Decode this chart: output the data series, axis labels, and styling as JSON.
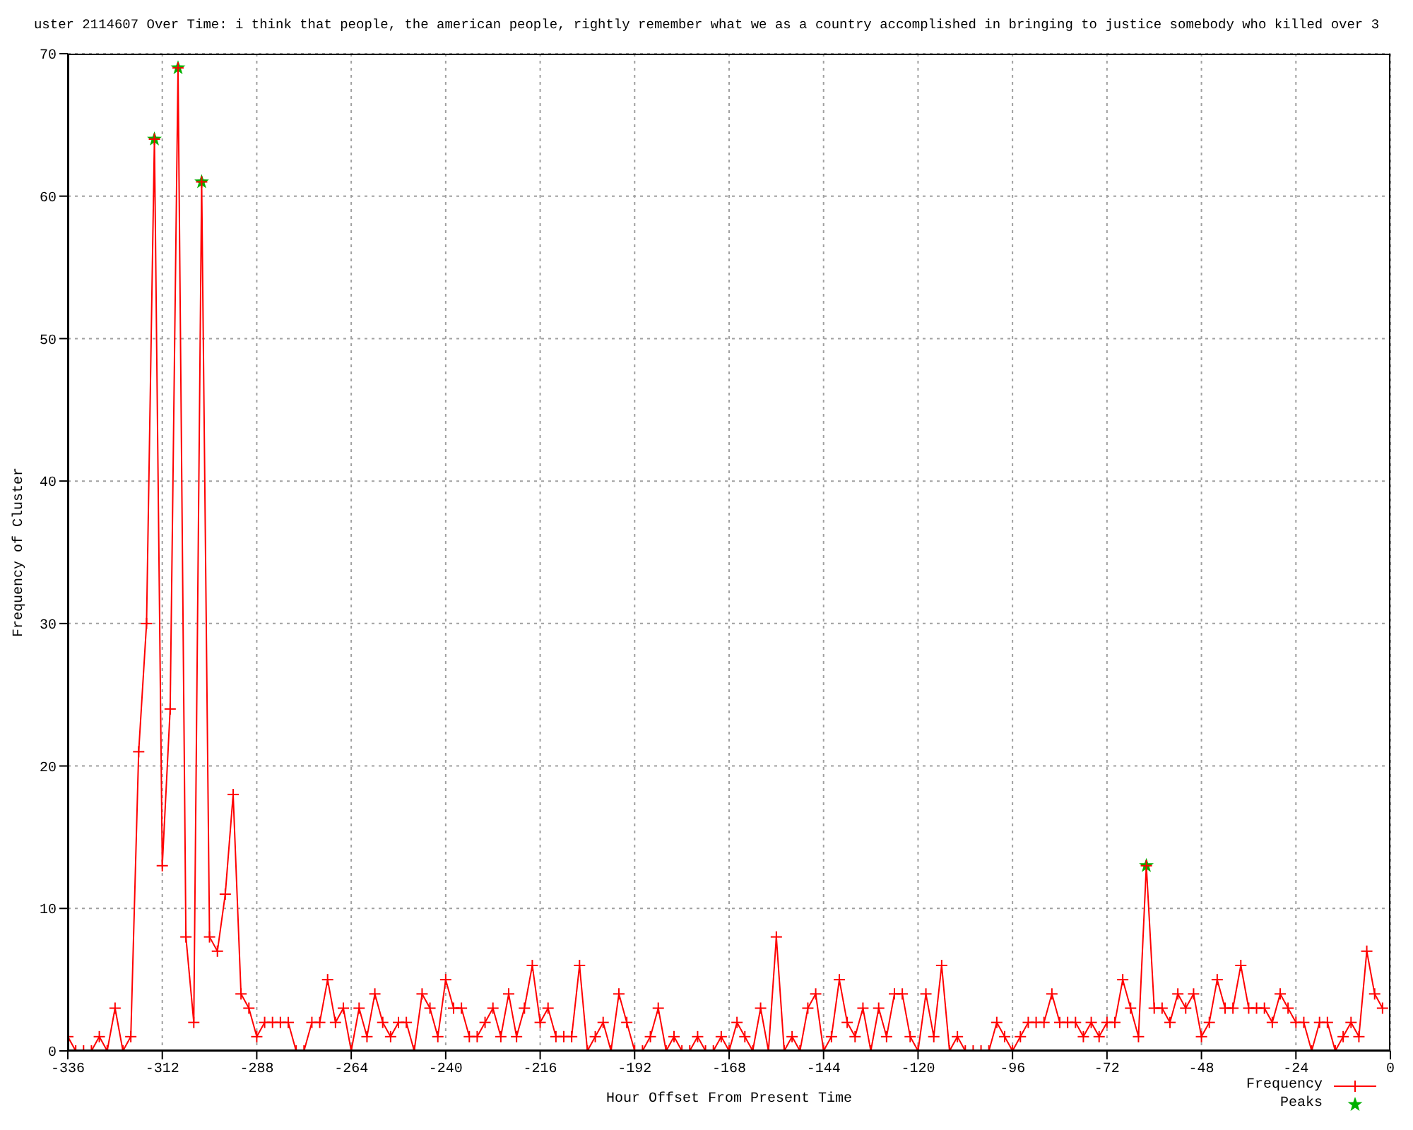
{
  "chart_data": {
    "type": "line",
    "title": "uster 2114607 Over Time: i think that people, the american people, rightly remember what we as a country accomplished in bringing to justice somebody who killed over 3",
    "xlabel": "Hour Offset From Present Time",
    "ylabel": "Frequency of Cluster",
    "x": [
      -336,
      -334,
      -332,
      -330,
      -328,
      -326,
      -324,
      -322,
      -320,
      -318,
      -316,
      -314,
      -312,
      -310,
      -308,
      -306,
      -304,
      -302,
      -300,
      -298,
      -296,
      -294,
      -292,
      -290,
      -288,
      -286,
      -284,
      -282,
      -280,
      -278,
      -276,
      -274,
      -272,
      -270,
      -268,
      -266,
      -264,
      -262,
      -260,
      -258,
      -256,
      -254,
      -252,
      -250,
      -248,
      -246,
      -244,
      -242,
      -240,
      -238,
      -236,
      -234,
      -232,
      -230,
      -228,
      -226,
      -224,
      -222,
      -220,
      -218,
      -216,
      -214,
      -212,
      -210,
      -208,
      -206,
      -204,
      -202,
      -200,
      -198,
      -196,
      -194,
      -192,
      -190,
      -188,
      -186,
      -184,
      -182,
      -180,
      -178,
      -176,
      -174,
      -172,
      -170,
      -168,
      -166,
      -164,
      -162,
      -160,
      -158,
      -156,
      -154,
      -152,
      -150,
      -148,
      -146,
      -144,
      -142,
      -140,
      -138,
      -136,
      -134,
      -132,
      -130,
      -128,
      -126,
      -124,
      -122,
      -120,
      -118,
      -116,
      -114,
      -112,
      -110,
      -108,
      -106,
      -104,
      -102,
      -100,
      -98,
      -96,
      -94,
      -92,
      -90,
      -88,
      -86,
      -84,
      -82,
      -80,
      -78,
      -76,
      -74,
      -72,
      -70,
      -68,
      -66,
      -64,
      -62,
      -60,
      -58,
      -56,
      -54,
      -52,
      -50,
      -48,
      -46,
      -44,
      -42,
      -40,
      -38,
      -36,
      -34,
      -32,
      -30,
      -28,
      -26,
      -24,
      -22,
      -20,
      -18,
      -16,
      -14,
      -12,
      -10,
      -8,
      -6,
      -4,
      -2
    ],
    "series": [
      {
        "name": "Frequency",
        "color": "#ff0000",
        "marker": "cross",
        "values": [
          1,
          0,
          0,
          0,
          1,
          0,
          3,
          0,
          1,
          21,
          30,
          64,
          13,
          24,
          69,
          8,
          2,
          61,
          8,
          7,
          11,
          18,
          4,
          3,
          1,
          2,
          2,
          2,
          2,
          0,
          0,
          2,
          2,
          5,
          2,
          3,
          0,
          3,
          1,
          4,
          2,
          1,
          2,
          2,
          0,
          4,
          3,
          1,
          5,
          3,
          3,
          1,
          1,
          2,
          3,
          1,
          4,
          1,
          3,
          6,
          2,
          3,
          1,
          1,
          1,
          6,
          0,
          1,
          2,
          0,
          4,
          2,
          0,
          0,
          1,
          3,
          0,
          1,
          0,
          0,
          1,
          0,
          0,
          1,
          0,
          2,
          1,
          0,
          3,
          0,
          8,
          0,
          1,
          0,
          3,
          4,
          0,
          1,
          5,
          2,
          1,
          3,
          0,
          3,
          1,
          4,
          4,
          1,
          0,
          4,
          1,
          6,
          0,
          1,
          0,
          0,
          0,
          0,
          2,
          1,
          0,
          1,
          2,
          2,
          2,
          4,
          2,
          2,
          2,
          1,
          2,
          1,
          2,
          2,
          5,
          3,
          1,
          13,
          3,
          3,
          2,
          4,
          3,
          4,
          1,
          2,
          5,
          3,
          3,
          6,
          3,
          3,
          3,
          2,
          4,
          3,
          2,
          2,
          0,
          2,
          2,
          0,
          1,
          2,
          1,
          7,
          4,
          3
        ]
      },
      {
        "name": "Peaks",
        "type": "scatter",
        "color": "#00b000",
        "marker": "star",
        "x": [
          -314,
          -308,
          -302,
          -62
        ],
        "values": [
          64,
          69,
          61,
          13
        ]
      }
    ],
    "xlim": [
      -336,
      0
    ],
    "xticks": [
      -336,
      -312,
      -288,
      -264,
      -240,
      -216,
      -192,
      -168,
      -144,
      -120,
      -96,
      -72,
      -48,
      -24,
      0
    ],
    "ylim": [
      0,
      70
    ],
    "yticks": [
      0,
      10,
      20,
      30,
      40,
      50,
      60,
      70
    ],
    "grid": true,
    "legend": "bottom right"
  }
}
